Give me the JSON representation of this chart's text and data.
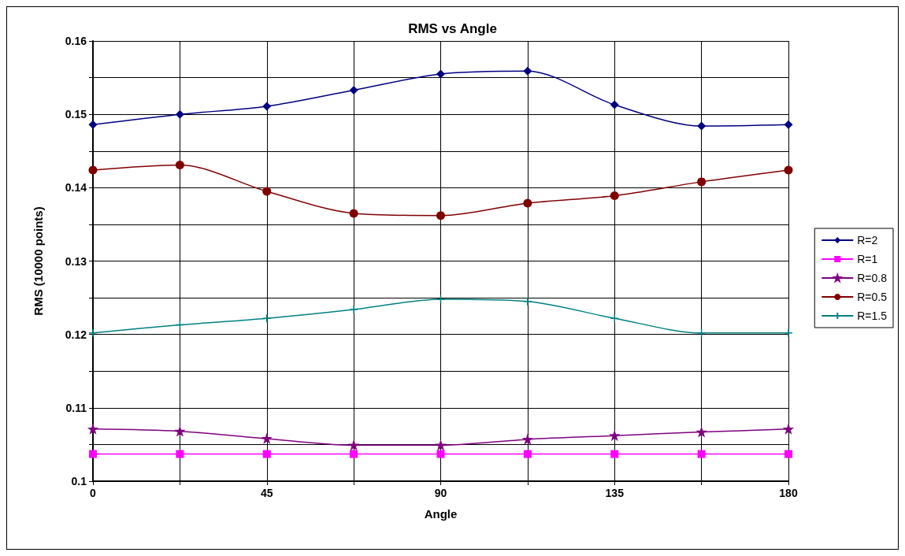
{
  "chart_data": {
    "type": "line",
    "title": "RMS vs Angle",
    "xlabel": "Angle",
    "ylabel": "RMS (10000 points)",
    "x": [
      0,
      22.5,
      45,
      67.5,
      90,
      112.5,
      135,
      157.5,
      180
    ],
    "xlim": [
      0,
      180
    ],
    "xticks": [
      0,
      {
        "value": 22.5,
        "label": null
      },
      45,
      {
        "value": 67.5,
        "label": null
      },
      90,
      {
        "value": 112.5,
        "label": null
      },
      135,
      {
        "value": 157.5,
        "label": null
      },
      180
    ],
    "ylim": [
      0.1,
      0.16
    ],
    "yticks": [
      0.1,
      {
        "value": 0.105,
        "label": null
      },
      0.11,
      {
        "value": 0.115,
        "label": null
      },
      0.12,
      {
        "value": 0.125,
        "label": null
      },
      0.13,
      {
        "value": 0.135,
        "label": null
      },
      0.14,
      {
        "value": 0.145,
        "label": null
      },
      0.15,
      {
        "value": 0.155,
        "label": null
      },
      0.16
    ],
    "grid": true,
    "legend": "right",
    "series": [
      {
        "name": "R=2",
        "color": "#000080",
        "marker": "diamond",
        "values": [
          0.1486,
          0.15,
          0.1511,
          0.1533,
          0.1555,
          0.1559,
          0.1513,
          0.1484,
          0.1486
        ]
      },
      {
        "name": "R=1",
        "color": "#ff00ff",
        "marker": "square",
        "values": [
          0.1037,
          0.1037,
          0.1037,
          0.1037,
          0.1037,
          0.1037,
          0.1037,
          0.1037,
          0.1037
        ]
      },
      {
        "name": "R=0.8",
        "color": "#800080",
        "marker": "star",
        "values": [
          0.1071,
          0.1068,
          0.1058,
          0.1049,
          0.1049,
          0.1057,
          0.1062,
          0.1067,
          0.1071
        ]
      },
      {
        "name": "R=0.5",
        "color": "#800000",
        "marker": "circle",
        "values": [
          0.1424,
          0.1431,
          0.1395,
          0.1365,
          0.1362,
          0.1379,
          0.1389,
          0.1408,
          0.1424
        ]
      },
      {
        "name": "R=1.5",
        "color": "#008080",
        "marker": "cross",
        "values": [
          0.1202,
          0.1213,
          0.1222,
          0.1234,
          0.1248,
          0.1245,
          0.1222,
          0.1202,
          0.1202
        ]
      }
    ]
  }
}
